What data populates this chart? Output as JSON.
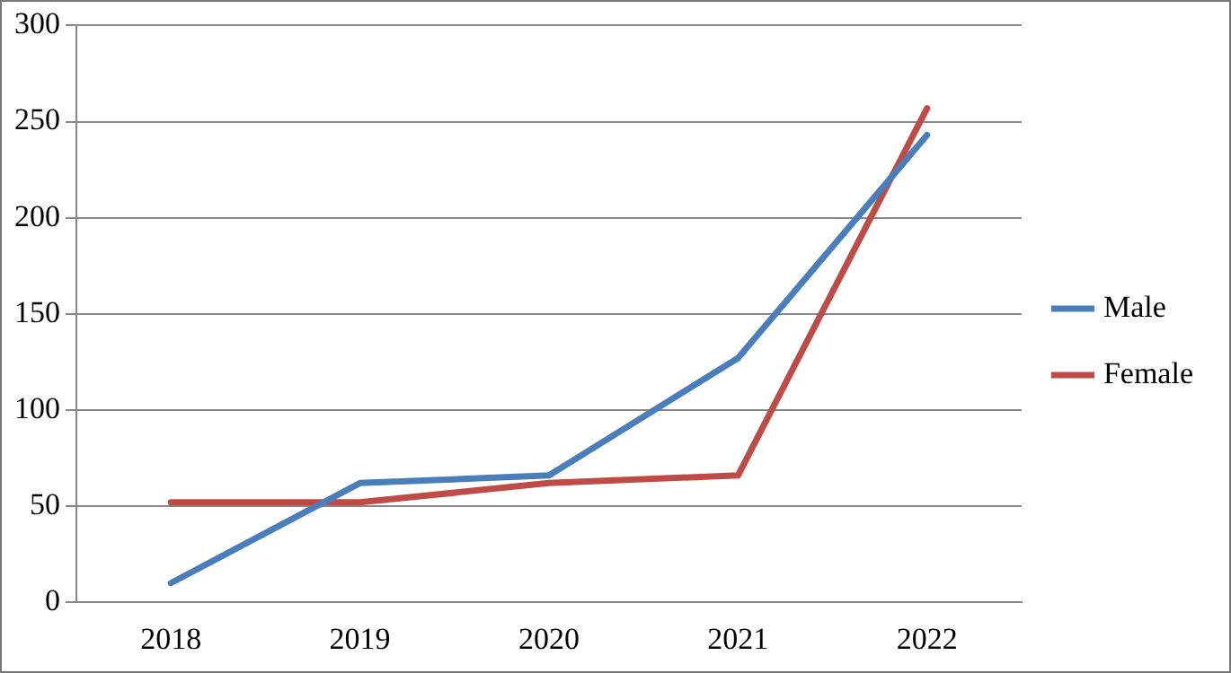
{
  "chart_data": {
    "type": "line",
    "categories": [
      "2018",
      "2019",
      "2020",
      "2021",
      "2022"
    ],
    "series": [
      {
        "name": "Male",
        "color": "#4a7ebb",
        "values": [
          10,
          62,
          66,
          127,
          243
        ]
      },
      {
        "name": "Female",
        "color": "#be4b48",
        "values": [
          52,
          52,
          62,
          66,
          257
        ]
      }
    ],
    "ylim": [
      0,
      300
    ],
    "yticks": [
      0,
      50,
      100,
      150,
      200,
      250,
      300
    ],
    "grid": "y",
    "legend": "right",
    "marker": "none",
    "line_style": "solid"
  }
}
